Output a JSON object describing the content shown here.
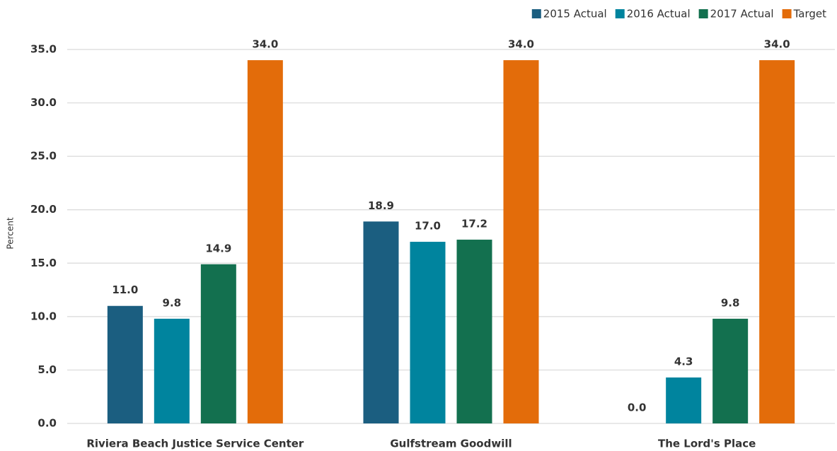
{
  "chart_data": {
    "type": "bar",
    "y_label": "Percent",
    "categories": [
      "Riviera Beach Justice Service Center",
      "Gulfstream Goodwill",
      "The Lord's Place"
    ],
    "series": [
      {
        "name": "2015 Actual",
        "color": "#1b5e80",
        "values": [
          11.0,
          18.9,
          0.0
        ],
        "value_labels": [
          "11.0",
          "18.9",
          "0.0"
        ]
      },
      {
        "name": "2016 Actual",
        "color": "#00849e",
        "values": [
          9.8,
          17.0,
          4.3
        ],
        "value_labels": [
          "9.8",
          "17.0",
          "4.3"
        ]
      },
      {
        "name": "2017 Actual",
        "color": "#13704f",
        "values": [
          14.9,
          17.2,
          9.8
        ],
        "value_labels": [
          "14.9",
          "17.2",
          "9.8"
        ]
      },
      {
        "name": "Target",
        "color": "#e36c0a",
        "values": [
          34.0,
          34.0,
          34.0
        ],
        "value_labels": [
          "34.0",
          "34.0",
          "34.0"
        ]
      }
    ],
    "ylim": [
      0,
      35
    ],
    "yticks": [
      {
        "value": 0,
        "label": "0.0"
      },
      {
        "value": 5,
        "label": "5.0"
      },
      {
        "value": 10,
        "label": "10.0"
      },
      {
        "value": 15,
        "label": "15.0"
      },
      {
        "value": 20,
        "label": "20.0"
      },
      {
        "value": 25,
        "label": "25.0"
      },
      {
        "value": 30,
        "label": "30.0"
      },
      {
        "value": 35,
        "label": "35.0"
      }
    ],
    "grid": true,
    "legend": "top-right"
  }
}
